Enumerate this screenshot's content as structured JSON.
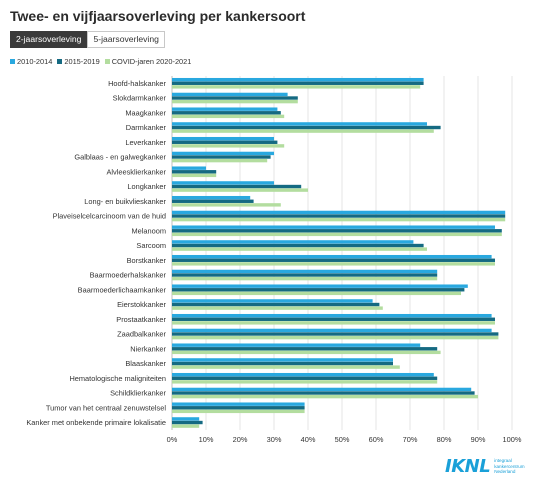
{
  "header": {
    "title": "Twee- en vijfjaarsoverleving per kankersoort",
    "tabs": [
      {
        "label": "2-jaarsoverleving",
        "active": true
      },
      {
        "label": "5-jaarsoverleving",
        "active": false
      }
    ]
  },
  "logo": {
    "mark": "IKNL",
    "line1": "integraal",
    "line2": "kankercentrum",
    "line3": "Nederland"
  },
  "chart_data": {
    "type": "bar",
    "orientation": "horizontal",
    "title": "Twee- en vijfjaarsoverleving per kankersoort",
    "xlabel": "",
    "ylabel": "",
    "xlim": [
      0,
      100
    ],
    "xticks": [
      "0%",
      "10%",
      "20%",
      "30%",
      "40%",
      "50%",
      "60%",
      "70%",
      "80%",
      "90%",
      "100%"
    ],
    "grid": true,
    "legend_position": "top-left",
    "categories": [
      "Hoofd-halskanker",
      "Slokdarmkanker",
      "Maagkanker",
      "Darmkanker",
      "Leverkanker",
      "Galblaas - en galwegkanker",
      "Alvleesklierkanker",
      "Longkanker",
      "Long- en buikvlieskanker",
      "Plaveiselcelcarcinoom van de huid",
      "Melanoom",
      "Sarcoom",
      "Borstkanker",
      "Baarmoederhalskanker",
      "Baarmoederlichaamkanker",
      "Eierstokkanker",
      "Prostaatkanker",
      "Zaadbalkanker",
      "Nierkanker",
      "Blaaskanker",
      "Hematologische maligniteiten",
      "Schildklierkanker",
      "Tumor van het centraal zenuwstelsel",
      "Kanker met onbekende primaire lokalisatie"
    ],
    "series": [
      {
        "name": "2010-2014",
        "color": "#29a8df",
        "values": [
          74,
          34,
          31,
          75,
          30,
          30,
          10,
          30,
          23,
          98,
          95,
          71,
          94,
          78,
          87,
          59,
          94,
          94,
          73,
          65,
          77,
          88,
          39,
          8
        ]
      },
      {
        "name": "2015-2019",
        "color": "#156a82",
        "values": [
          74,
          37,
          32,
          79,
          31,
          29,
          13,
          38,
          24,
          98,
          97,
          74,
          95,
          78,
          86,
          61,
          95,
          96,
          78,
          65,
          78,
          89,
          39,
          9
        ]
      },
      {
        "name": "COVID-jaren 2020-2021",
        "color": "#b3dd9f",
        "values": [
          73,
          37,
          33,
          77,
          33,
          28,
          13,
          40,
          32,
          98,
          97,
          75,
          95,
          78,
          85,
          62,
          95,
          96,
          79,
          67,
          78,
          90,
          39,
          8
        ]
      }
    ]
  }
}
